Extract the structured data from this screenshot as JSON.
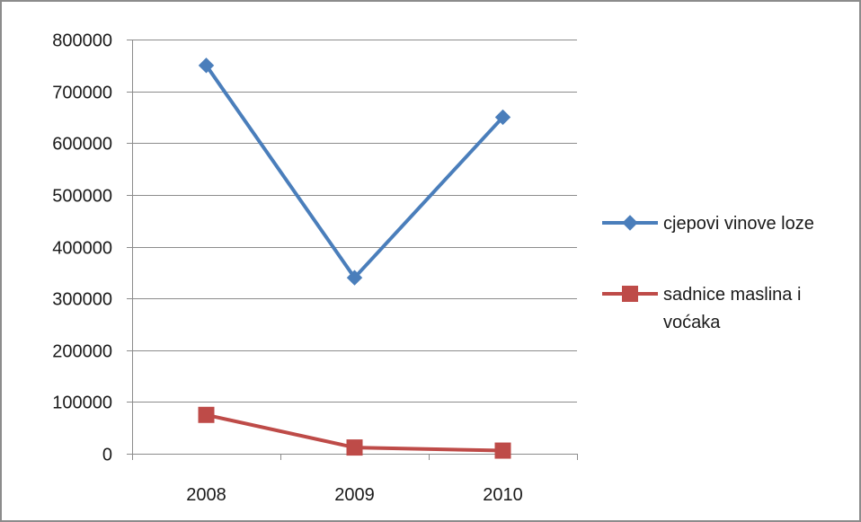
{
  "chart_data": {
    "type": "line",
    "categories": [
      "2008",
      "2009",
      "2010"
    ],
    "series": [
      {
        "name": "cjepovi vinove loze",
        "values": [
          750000,
          340000,
          650000
        ],
        "color": "#4a7ebb",
        "marker": "diamond"
      },
      {
        "name": "sadnice maslina i voćaka",
        "name_lines": [
          "sadnice maslina i",
          "voćaka"
        ],
        "values": [
          75000,
          12000,
          6000
        ],
        "color": "#be4b48",
        "marker": "square"
      }
    ],
    "ylim": [
      0,
      800000
    ],
    "yticks": [
      0,
      100000,
      200000,
      300000,
      400000,
      500000,
      600000,
      700000,
      800000
    ],
    "grid": "horizontal",
    "legend_position": "right"
  }
}
